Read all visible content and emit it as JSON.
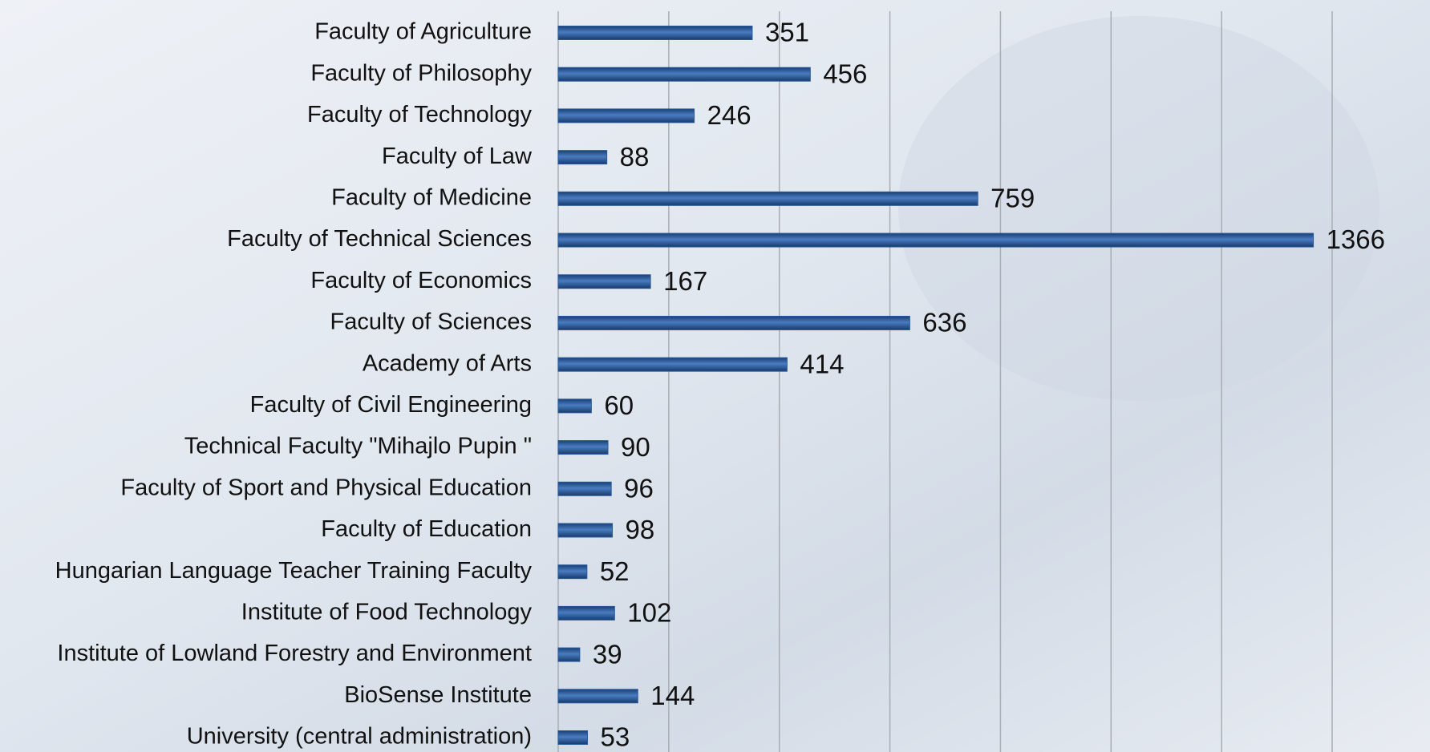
{
  "chart_data": {
    "type": "hbar",
    "categories": [
      "Faculty of Agriculture",
      "Faculty of Philosophy",
      "Faculty of Technology",
      "Faculty of Law",
      "Faculty of Medicine",
      "Faculty of Technical Sciences",
      "Faculty of Economics",
      "Faculty of Sciences",
      "Academy of Arts",
      "Faculty of Civil Engineering",
      "Technical Faculty \"Mihajlo Pupin \"",
      "Faculty of Sport and Physical Education",
      "Faculty of Education",
      "Hungarian Language Teacher Training Faculty",
      "Institute of Food Technology",
      "Institute of Lowland Forestry and Environment",
      "BioSense Institute",
      "University (central administration)"
    ],
    "values": [
      351,
      456,
      246,
      88,
      759,
      1366,
      167,
      636,
      414,
      60,
      90,
      96,
      98,
      52,
      102,
      39,
      144,
      53
    ],
    "color": "#2a5a9a",
    "xlim": [
      0,
      1400
    ],
    "xticks": [
      0,
      200,
      400,
      600,
      800,
      1000,
      1200,
      1400
    ],
    "grid": true
  }
}
